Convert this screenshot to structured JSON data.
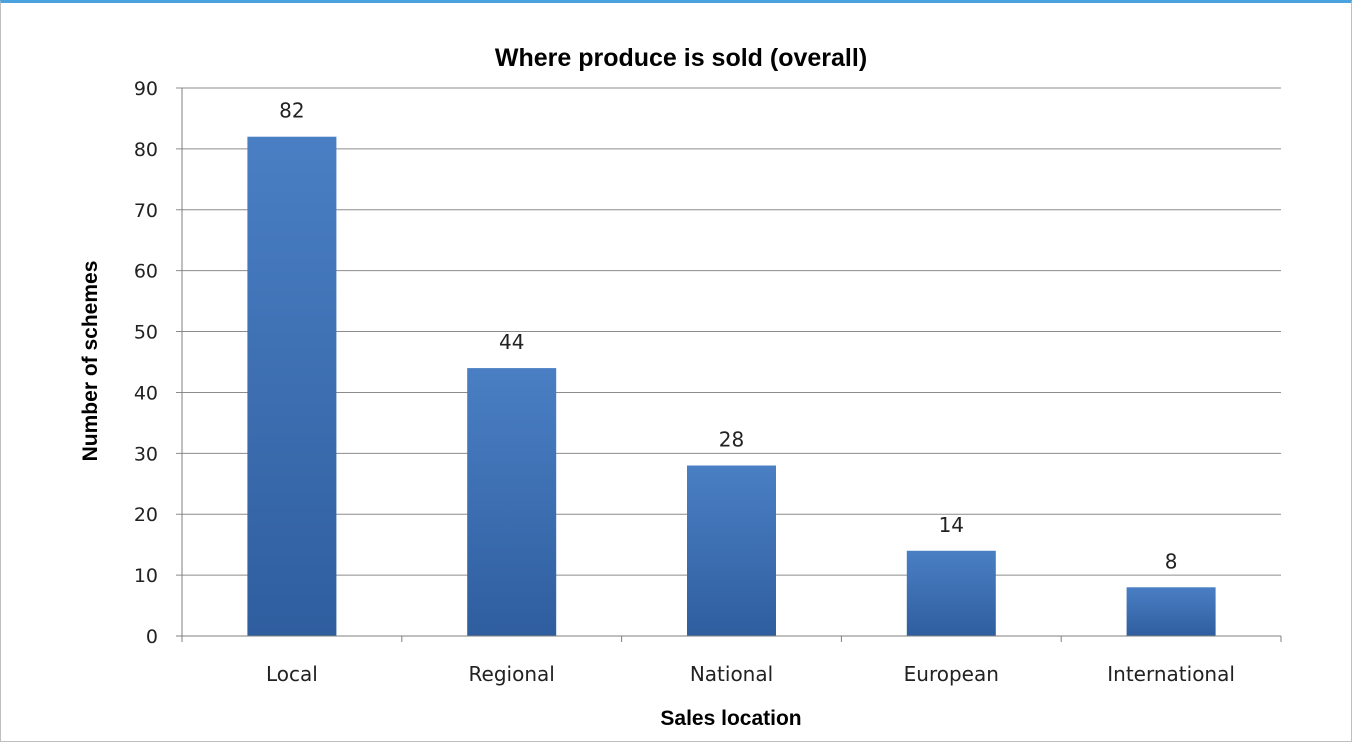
{
  "chart_data": {
    "type": "bar",
    "title": "Where produce is sold (overall)",
    "xlabel": "Sales location",
    "ylabel": "Number of schemes",
    "categories": [
      "Local",
      "Regional",
      "National",
      "European",
      "International"
    ],
    "values": [
      82,
      44,
      28,
      14,
      8
    ],
    "data_labels": [
      "82",
      "44",
      "28",
      "14",
      "8"
    ],
    "ylim": [
      0,
      90
    ],
    "yticks": [
      "0",
      "10",
      "20",
      "30",
      "40",
      "50",
      "60",
      "70",
      "80",
      "90"
    ],
    "grid": true,
    "legend": "none",
    "colors": {
      "bar": "#3d6fb6",
      "bar_light": "#4a7fc4",
      "bar_dark": "#2f5e9f",
      "border": "#4aa3df"
    }
  }
}
